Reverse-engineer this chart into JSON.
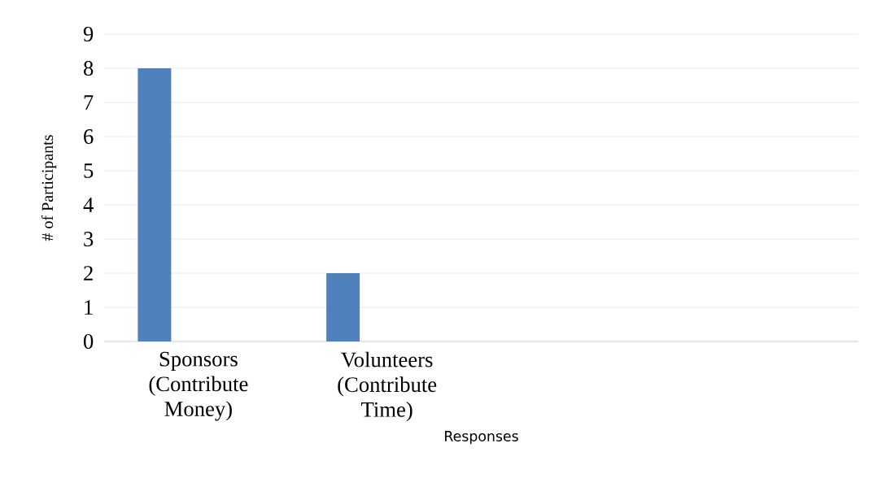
{
  "chart_data": {
    "type": "bar",
    "xlabel": "Responses",
    "ylabel": "# of Participants",
    "categories": [
      "Sponsors (Contribute Money)",
      "Volunteers (Contribute Time)",
      null,
      null
    ],
    "values": [
      8,
      2,
      null,
      null
    ],
    "color": "#4f81bd",
    "ylim": [
      0,
      9
    ],
    "yticks": [
      0,
      1,
      2,
      3,
      4,
      5,
      6,
      7,
      8,
      9
    ],
    "grid": "y"
  }
}
